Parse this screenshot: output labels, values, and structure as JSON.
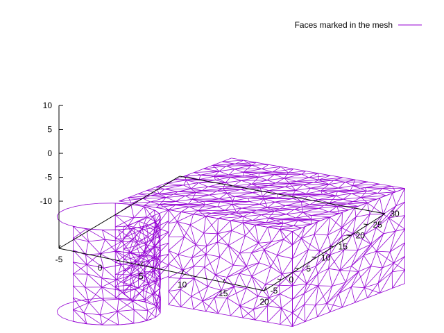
{
  "chart_data": {
    "type": "wireframe-3d",
    "legend": {
      "label": "Faces marked in the mesh",
      "position": "top-right"
    },
    "series": [
      {
        "name": "Faces marked in the mesh",
        "color": "#9400d3",
        "geometry": "triangulated surface mesh: vertical cylinder (radius ~5, centered x=1.5,y=-0.5) joined to a rectangular block (x 5..20, y 5..25) with a notch"
      }
    ],
    "axes": {
      "x": {
        "ticks": [
          "-5",
          "0",
          "5",
          "10",
          "15",
          "20"
        ],
        "range": [
          -5,
          20
        ]
      },
      "y": {
        "ticks": [
          "-5",
          "0",
          "5",
          "10",
          "15",
          "20",
          "25",
          "30"
        ],
        "range": [
          -5,
          30
        ]
      },
      "z": {
        "ticks": [
          "10",
          "5",
          "0",
          "-5",
          "-10"
        ],
        "range": [
          -10,
          10
        ]
      }
    },
    "grid": false,
    "colors": {
      "mesh": "#9400d3",
      "axes": "#000000"
    }
  }
}
